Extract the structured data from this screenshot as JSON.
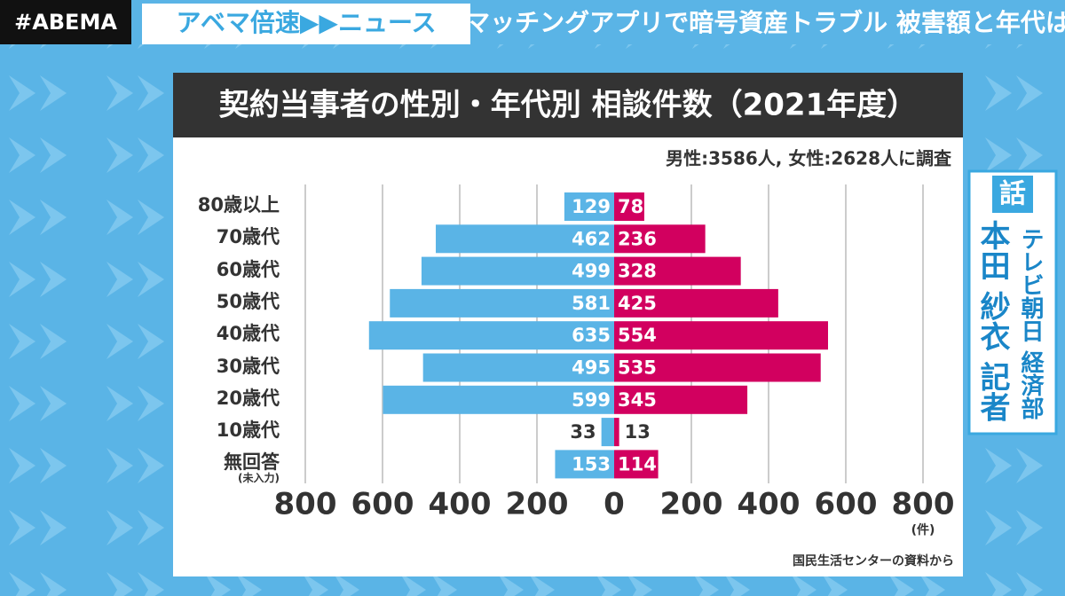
{
  "header": {
    "logo": "#ABEMA",
    "program": "アベマ倍速▶▶ニュース",
    "headline": "マッチングアプリで暗号資産トラブル 被害額と年代は"
  },
  "speaker": {
    "label": "話",
    "name": "本田 紗衣 記者",
    "affiliation": "テレビ朝日 経済部"
  },
  "chart_data": {
    "type": "bar",
    "title": "契約当事者の性別・年代別 相談件数（2021年度）",
    "subtitle": "男性:3586人, 女性:2628人に調査",
    "categories": [
      "80歳以上",
      "70歳代",
      "60歳代",
      "50歳代",
      "40歳代",
      "30歳代",
      "20歳代",
      "10歳代",
      "無回答\n(未入力)"
    ],
    "series": [
      {
        "color": "#5ab4e6",
        "values": [
          129,
          462,
          499,
          581,
          635,
          495,
          599,
          33,
          153
        ]
      },
      {
        "color": "#d2005f",
        "values": [
          78,
          236,
          328,
          425,
          554,
          535,
          345,
          13,
          114
        ]
      }
    ],
    "xlim": [
      0,
      800
    ],
    "xticks": [
      0,
      200,
      400,
      600,
      800
    ],
    "xlabel": "(件)",
    "grid": true,
    "source": "国民生活センターの資料から"
  }
}
